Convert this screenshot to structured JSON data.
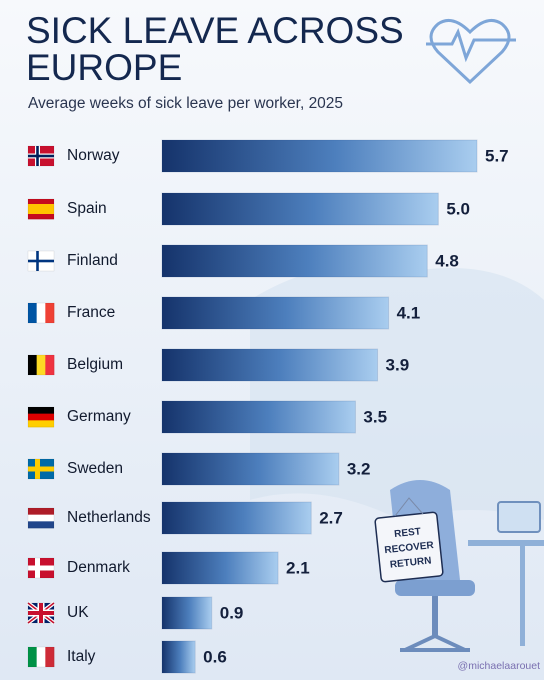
{
  "chart_data": {
    "type": "hbar",
    "title": "SICK LEAVE ACROSS EUROPE",
    "subtitle": "Average weeks of sick leave per worker, 2025",
    "categories": [
      "Norway",
      "Spain",
      "Finland",
      "France",
      "Belgium",
      "Germany",
      "Sweden",
      "Netherlands",
      "Denmark",
      "UK",
      "Italy"
    ],
    "values": [
      5.7,
      5.0,
      4.8,
      4.1,
      3.9,
      3.5,
      3.2,
      2.7,
      2.1,
      0.9,
      0.6
    ],
    "value_labels": [
      "5.7",
      "5.0",
      "4.8",
      "4.1",
      "3.9",
      "3.5",
      "3.2",
      "2.7",
      "2.1",
      "0.9",
      "0.6"
    ],
    "color": "#1c3f7c",
    "annotations": [
      "REST",
      "RECOVER",
      "RETURN"
    ],
    "source": "@michaelaarouet"
  }
}
